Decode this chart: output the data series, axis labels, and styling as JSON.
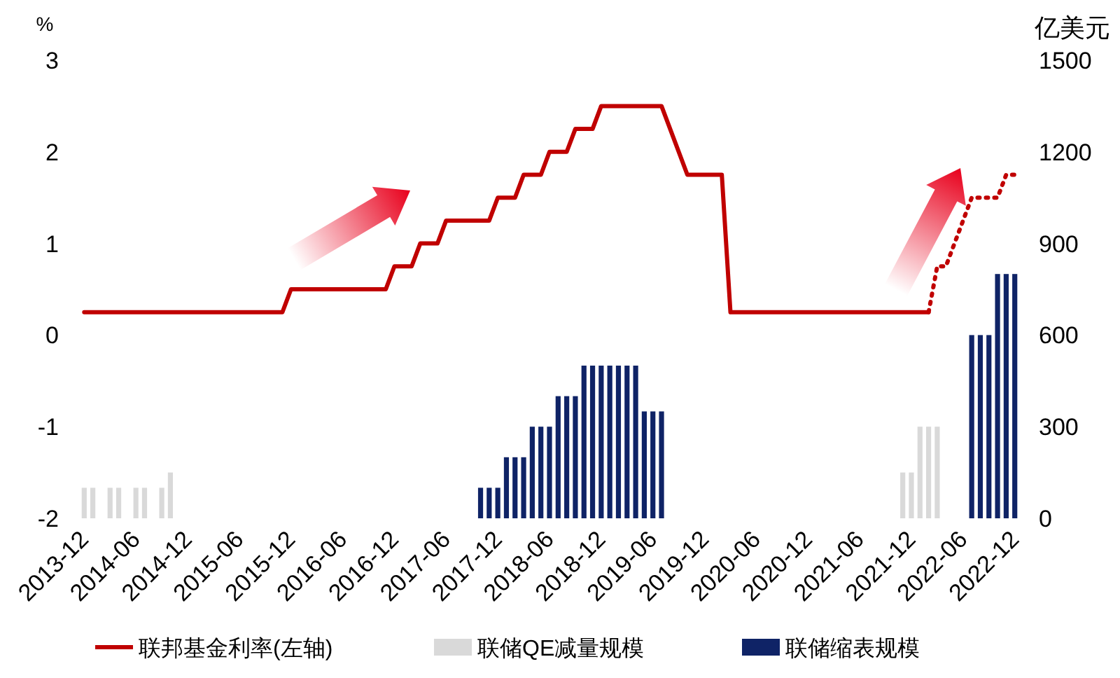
{
  "chart_data": {
    "type": "bar",
    "ylabel": "%",
    "y2label": "亿美元",
    "xlim": [
      "2013-11",
      "2023-01"
    ],
    "xticks": [
      "2013-12",
      "2014-06",
      "2014-12",
      "2015-06",
      "2015-12",
      "2016-06",
      "2016-12",
      "2017-06",
      "2017-12",
      "2018-06",
      "2018-12",
      "2019-06",
      "2019-12",
      "2020-06",
      "2020-12",
      "2021-06",
      "2021-12",
      "2022-06",
      "2022-12"
    ],
    "ylim": [
      -2,
      3
    ],
    "yticks": [
      -2,
      -1,
      0,
      1,
      2,
      3
    ],
    "y2lim": [
      0,
      1500
    ],
    "y2ticks": [
      0,
      300,
      600,
      900,
      1200,
      1500
    ],
    "legend": "bottom",
    "series": [
      {
        "name": "联邦基金利率(左轴)",
        "type": "line",
        "axis": "y",
        "color": "#c00000",
        "line_style": "solid",
        "x": [
          "2013-12",
          "2015-11",
          "2015-12",
          "2016-11",
          "2016-12",
          "2017-02",
          "2017-03",
          "2017-05",
          "2017-06",
          "2017-11",
          "2017-12",
          "2018-02",
          "2018-03",
          "2018-05",
          "2018-06",
          "2018-08",
          "2018-09",
          "2018-11",
          "2018-12",
          "2019-07",
          "2019-10",
          "2020-02",
          "2020-03",
          "2022-02"
        ],
        "values": [
          0.25,
          0.25,
          0.5,
          0.5,
          0.75,
          0.75,
          1.0,
          1.0,
          1.25,
          1.25,
          1.5,
          1.5,
          1.75,
          1.75,
          2.0,
          2.0,
          2.25,
          2.25,
          2.5,
          2.5,
          1.75,
          1.75,
          0.25,
          0.25
        ]
      },
      {
        "type": "line",
        "axis": "y",
        "color": "#c00000",
        "line_style": "dotted",
        "x": [
          "2022-02",
          "2022-03",
          "2022-04",
          "2022-07",
          "2022-10",
          "2022-11",
          "2022-12"
        ],
        "values": [
          0.25,
          0.75,
          0.75,
          1.5,
          1.5,
          1.75,
          1.75
        ]
      },
      {
        "name": "联储QE减量规模",
        "type": "bar",
        "axis": "y2",
        "color": "#d9d9d9",
        "x": [
          "2013-12",
          "2014-01",
          "2014-03",
          "2014-04",
          "2014-06",
          "2014-07",
          "2014-09",
          "2014-10",
          "2021-11",
          "2021-12",
          "2022-01",
          "2022-02",
          "2022-03"
        ],
        "values": [
          100,
          100,
          100,
          100,
          100,
          100,
          100,
          150,
          150,
          150,
          300,
          300,
          300
        ]
      },
      {
        "name": "联储缩表规模",
        "type": "bar",
        "axis": "y2",
        "color": "#0f2366",
        "x": [
          "2017-10",
          "2017-11",
          "2017-12",
          "2018-01",
          "2018-02",
          "2018-03",
          "2018-04",
          "2018-05",
          "2018-06",
          "2018-07",
          "2018-08",
          "2018-09",
          "2018-10",
          "2018-11",
          "2018-12",
          "2019-01",
          "2019-02",
          "2019-03",
          "2019-04",
          "2019-05",
          "2019-06",
          "2019-07",
          "2022-07",
          "2022-08",
          "2022-09",
          "2022-10",
          "2022-11",
          "2022-12"
        ],
        "values": [
          100,
          100,
          100,
          200,
          200,
          200,
          300,
          300,
          300,
          400,
          400,
          400,
          500,
          500,
          500,
          500,
          500,
          500,
          500,
          350,
          350,
          350,
          600,
          600,
          600,
          800,
          800,
          800
        ]
      }
    ]
  }
}
